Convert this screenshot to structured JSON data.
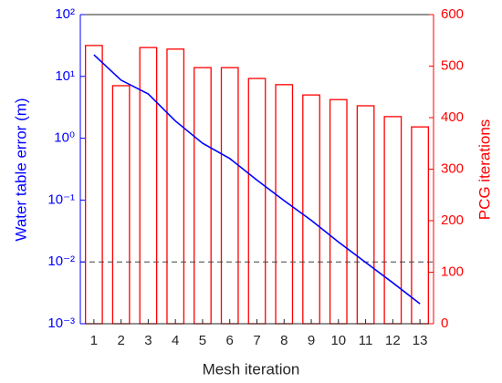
{
  "chart_data": {
    "type": "combo",
    "categories": [
      "1",
      "2",
      "3",
      "4",
      "5",
      "6",
      "7",
      "8",
      "9",
      "10",
      "11",
      "12",
      "13"
    ],
    "xlabel": "Mesh iteration",
    "ylabel": "Water table error (m)",
    "y2label": "PCG iterations",
    "ylim": [
      0.001,
      100
    ],
    "yscale": "log",
    "yticks": [
      {
        "value": 0.001,
        "label": "10⁻³"
      },
      {
        "value": 0.01,
        "label": "10⁻²"
      },
      {
        "value": 0.1,
        "label": "10⁻¹"
      },
      {
        "value": 1,
        "label": "10⁰"
      },
      {
        "value": 10,
        "label": "10¹"
      },
      {
        "value": 100,
        "label": "10²"
      }
    ],
    "y2lim": [
      0,
      600
    ],
    "y2ticks": [
      0,
      100,
      200,
      300,
      400,
      500,
      600
    ],
    "reference_line": {
      "value": 0.01,
      "color": "#404040",
      "style": "dashed"
    },
    "series": [
      {
        "type": "bar",
        "axis": "y2",
        "color": "#ff0000",
        "values": [
          540,
          462,
          536,
          533,
          497,
          497,
          476,
          464,
          444,
          435,
          423,
          402,
          382
        ]
      },
      {
        "type": "line",
        "axis": "y",
        "color": "#0000ff",
        "values": [
          22.4,
          8.7,
          5.2,
          1.9,
          0.83,
          0.47,
          0.21,
          0.098,
          0.047,
          0.021,
          0.0098,
          0.0046,
          0.0021
        ]
      }
    ]
  }
}
